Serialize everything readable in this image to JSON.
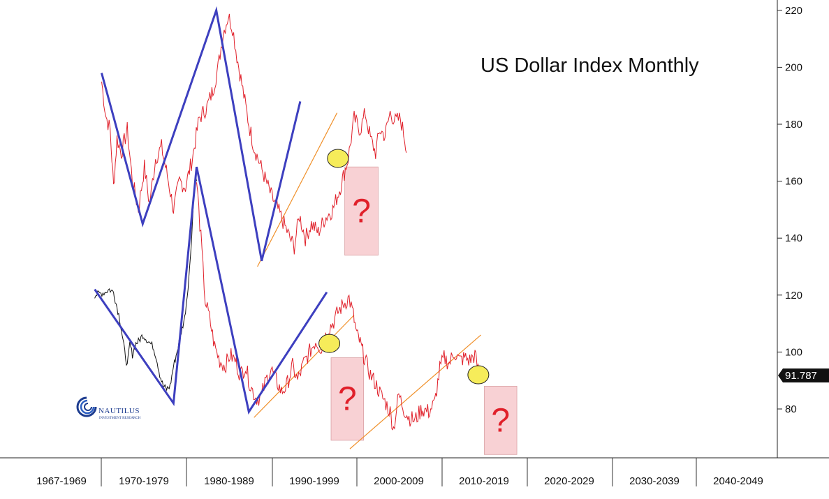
{
  "chart_data": {
    "type": "line",
    "title": "US Dollar Index Monthly",
    "x_categories": [
      "1967-1969",
      "1970-1979",
      "1980-1989",
      "1990-1999",
      "2000-2009",
      "2010-2019",
      "2020-2029",
      "2030-2039",
      "2040-2049"
    ],
    "y_ticks": [
      80,
      100,
      120,
      140,
      160,
      180,
      200,
      220
    ],
    "ylim": [
      68,
      224
    ],
    "last_price_label": "91.787",
    "series": [
      {
        "role": "upper-shifted",
        "color": "#e0202a",
        "points": [
          [
            1967.2,
            195
          ],
          [
            1967.7,
            183
          ],
          [
            1968.2,
            178
          ],
          [
            1968.6,
            158
          ],
          [
            1969.0,
            175
          ],
          [
            1969.5,
            170
          ],
          [
            1970.2,
            178
          ],
          [
            1970.8,
            160
          ],
          [
            1971.5,
            150
          ],
          [
            1972.2,
            165
          ],
          [
            1972.8,
            152
          ],
          [
            1973.5,
            168
          ],
          [
            1974.2,
            172
          ],
          [
            1975.0,
            160
          ],
          [
            1975.6,
            150
          ],
          [
            1976.3,
            160
          ],
          [
            1977.0,
            158
          ],
          [
            1977.8,
            168
          ],
          [
            1978.6,
            182
          ],
          [
            1979.5,
            186
          ],
          [
            1980.2,
            192
          ],
          [
            1980.8,
            200
          ],
          [
            1981.4,
            212
          ],
          [
            1982.0,
            218
          ],
          [
            1982.5,
            214
          ],
          [
            1983.0,
            204
          ],
          [
            1983.7,
            192
          ],
          [
            1984.4,
            180
          ],
          [
            1985.0,
            172
          ],
          [
            1985.7,
            166
          ],
          [
            1986.4,
            160
          ],
          [
            1987.0,
            155
          ],
          [
            1987.8,
            150
          ],
          [
            1988.5,
            145
          ],
          [
            1989.2,
            140
          ],
          [
            1989.7,
            137
          ],
          [
            1990.3,
            148
          ],
          [
            1991.0,
            140
          ],
          [
            1991.7,
            145
          ],
          [
            1992.5,
            142
          ],
          [
            1993.3,
            147
          ],
          [
            1994.2,
            150
          ],
          [
            1995.1,
            158
          ],
          [
            1996.0,
            168
          ],
          [
            1996.7,
            182
          ],
          [
            1997.4,
            178
          ],
          [
            1998.0,
            184
          ],
          [
            1998.6,
            175
          ],
          [
            1999.2,
            170
          ],
          [
            1999.7,
            178
          ],
          [
            2000.3,
            176
          ],
          [
            2000.9,
            184
          ],
          [
            2001.5,
            181
          ],
          [
            2002.1,
            182
          ],
          [
            2002.6,
            175
          ],
          [
            2002.8,
            170
          ]
        ]
      },
      {
        "role": "pre-1971",
        "color": "#111111",
        "points": [
          [
            1966.4,
            120
          ],
          [
            1967.0,
            120.5
          ],
          [
            1967.6,
            121
          ],
          [
            1968.1,
            122
          ],
          [
            1968.6,
            121
          ],
          [
            1968.9,
            117
          ],
          [
            1969.3,
            112
          ],
          [
            1969.6,
            106
          ],
          [
            1969.9,
            100
          ],
          [
            1970.2,
            95
          ],
          [
            1970.5,
            103
          ],
          [
            1970.8,
            99
          ],
          [
            1971.2,
            103
          ],
          [
            1971.6,
            104
          ],
          [
            1972.0,
            106
          ],
          [
            1972.6,
            104
          ],
          [
            1973.2,
            102
          ],
          [
            1973.6,
            98
          ],
          [
            1974.0,
            92
          ],
          [
            1974.4,
            88
          ],
          [
            1974.8,
            87
          ],
          [
            1975.2,
            88
          ],
          [
            1975.6,
            95
          ],
          [
            1976.0,
            100
          ],
          [
            1976.5,
            107
          ],
          [
            1976.9,
            112
          ],
          [
            1977.2,
            120
          ],
          [
            1977.5,
            130
          ],
          [
            1977.8,
            145
          ],
          [
            1978.1,
            162
          ],
          [
            1978.3,
            160
          ]
        ]
      },
      {
        "role": "actual",
        "color": "#e0202a",
        "points": [
          [
            1978.3,
            160
          ],
          [
            1978.8,
            140
          ],
          [
            1979.3,
            118
          ],
          [
            1979.8,
            112
          ],
          [
            1980.4,
            102
          ],
          [
            1981.0,
            97
          ],
          [
            1981.6,
            95
          ],
          [
            1982.2,
            99
          ],
          [
            1982.8,
            97
          ],
          [
            1983.4,
            92
          ],
          [
            1984.0,
            95
          ],
          [
            1984.6,
            88
          ],
          [
            1985.2,
            84
          ],
          [
            1985.8,
            84
          ],
          [
            1986.4,
            90
          ],
          [
            1987.0,
            94
          ],
          [
            1987.6,
            90
          ],
          [
            1988.2,
            86
          ],
          [
            1988.8,
            88
          ],
          [
            1989.5,
            95
          ],
          [
            1990.1,
            90
          ],
          [
            1990.8,
            96
          ],
          [
            1991.5,
            100
          ],
          [
            1992.2,
            104
          ],
          [
            1992.9,
            101
          ],
          [
            1993.6,
            108
          ],
          [
            1994.2,
            110
          ],
          [
            1994.8,
            114
          ],
          [
            1995.5,
            117
          ],
          [
            1996.1,
            119
          ],
          [
            1996.6,
            113
          ],
          [
            1997.0,
            106
          ],
          [
            1997.3,
            104
          ],
          [
            1997.7,
            100
          ],
          [
            1998.1,
            96
          ],
          [
            1998.6,
            92
          ],
          [
            1999.2,
            89
          ],
          [
            1999.8,
            85
          ],
          [
            2000.4,
            82
          ],
          [
            2000.9,
            79
          ],
          [
            2001.3,
            73
          ],
          [
            2001.9,
            85
          ],
          [
            2002.5,
            80
          ],
          [
            2003.1,
            77
          ],
          [
            2003.8,
            76
          ],
          [
            2004.6,
            80
          ],
          [
            2005.4,
            79
          ],
          [
            2006.1,
            82
          ],
          [
            2006.7,
            94
          ],
          [
            2007.2,
            98
          ],
          [
            2007.8,
            96
          ],
          [
            2008.4,
            100
          ],
          [
            2009.0,
            97
          ],
          [
            2009.6,
            98
          ],
          [
            2010.2,
            97
          ],
          [
            2010.8,
            99
          ],
          [
            2011.3,
            92
          ]
        ]
      }
    ],
    "zigzags": [
      {
        "color": "#3d3fbf",
        "points": [
          [
            1967.2,
            198
          ],
          [
            1972.0,
            145
          ],
          [
            1980.6,
            220
          ],
          [
            1985.9,
            132
          ],
          [
            1990.4,
            188
          ]
        ]
      },
      {
        "color": "#3d3fbf",
        "points": [
          [
            1966.4,
            122
          ],
          [
            1975.6,
            82
          ],
          [
            1978.3,
            165
          ],
          [
            1984.4,
            79
          ],
          [
            1993.5,
            121
          ]
        ]
      }
    ],
    "trendlines": [
      {
        "color": "#f0902a",
        "points": [
          [
            1985.4,
            130
          ],
          [
            1994.7,
            184
          ]
        ]
      },
      {
        "color": "#f0902a",
        "points": [
          [
            1985.0,
            77
          ],
          [
            1996.7,
            113
          ]
        ]
      },
      {
        "color": "#f0902a",
        "points": [
          [
            1996.2,
            66
          ],
          [
            2011.5,
            106
          ]
        ]
      }
    ],
    "highlight_circles": [
      [
        1994.8,
        168
      ],
      [
        1993.8,
        103
      ],
      [
        2011.2,
        92
      ]
    ],
    "question_boxes": [
      {
        "label": "?",
        "x": [
          1995.6,
          1999.5
        ],
        "y": [
          134,
          165
        ]
      },
      {
        "label": "?",
        "x": [
          1994.0,
          1997.8
        ],
        "y": [
          69,
          98
        ]
      },
      {
        "label": "?",
        "x": [
          2011.9,
          2015.7
        ],
        "y": [
          64,
          88
        ]
      }
    ],
    "logo": {
      "name": "NAUTILUS",
      "subtitle": "INVESTMENT RESEARCH"
    }
  }
}
